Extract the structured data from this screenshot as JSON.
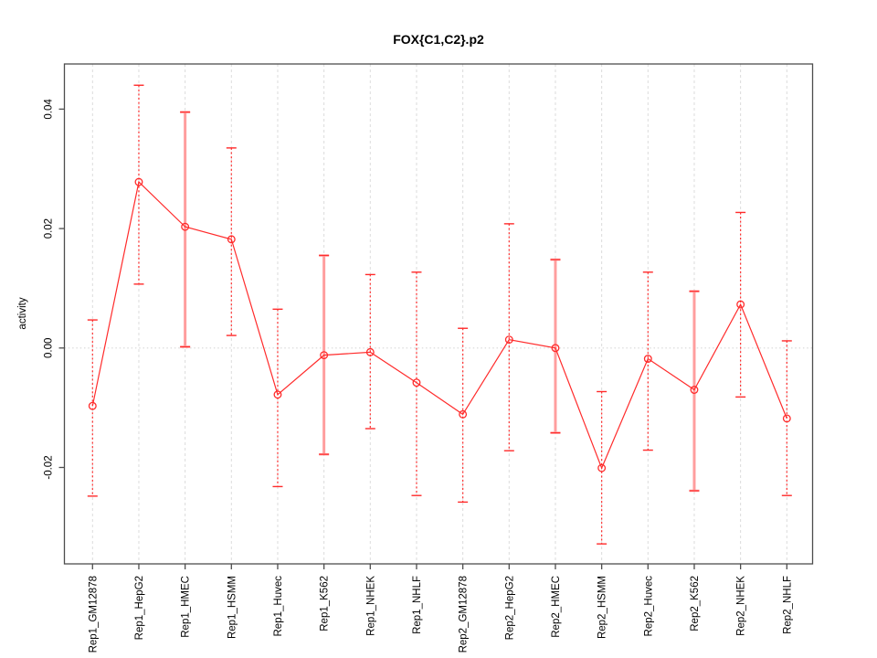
{
  "chart_data": {
    "type": "line",
    "title": "FOX{C1,C2}.p2",
    "xlabel": "",
    "ylabel": "activity",
    "categories": [
      "Rep1_GM12878",
      "Rep1_HepG2",
      "Rep1_HMEC",
      "Rep1_HSMM",
      "Rep1_Huvec",
      "Rep1_K562",
      "Rep1_NHEK",
      "Rep1_NHLF",
      "Rep2_GM12878",
      "Rep2_HepG2",
      "Rep2_HMEC",
      "Rep2_HSMM",
      "Rep2_Huvec",
      "Rep2_K562",
      "Rep2_NHEK",
      "Rep2_NHLF"
    ],
    "series": [
      {
        "name": "activity",
        "values": [
          -0.0097,
          0.0278,
          0.0203,
          0.0182,
          -0.0078,
          -0.0012,
          -0.0007,
          -0.0058,
          -0.0111,
          0.0014,
          0.0,
          -0.0201,
          -0.0018,
          -0.007,
          0.0073,
          -0.0118
        ],
        "error_upper": [
          0.0047,
          0.044,
          0.0395,
          0.0335,
          0.0065,
          0.0155,
          0.0123,
          0.0127,
          0.0033,
          0.0208,
          0.0148,
          -0.0073,
          0.0127,
          0.0095,
          0.0227,
          0.0012
        ],
        "error_lower": [
          -0.0248,
          0.0107,
          0.0002,
          0.0021,
          -0.0232,
          -0.0178,
          -0.0135,
          -0.0247,
          -0.0258,
          -0.0172,
          -0.0142,
          -0.0328,
          -0.0171,
          -0.0239,
          -0.0082,
          -0.0247
        ],
        "thick_bar": [
          false,
          false,
          true,
          false,
          false,
          true,
          false,
          false,
          false,
          false,
          true,
          false,
          false,
          true,
          false,
          false
        ]
      }
    ],
    "y_ticks": [
      {
        "value": -0.02,
        "label": "-0.02"
      },
      {
        "value": 0.0,
        "label": "0.00"
      },
      {
        "value": 0.02,
        "label": "0.02"
      },
      {
        "value": 0.04,
        "label": "0.04"
      }
    ],
    "ylim": [
      -0.0365,
      0.0475
    ],
    "grid": {
      "vertical_dashed_per_category": true,
      "horizontal_dotted_at_zero": true
    },
    "legend_position": "none",
    "marker": "open-circle",
    "colors": {
      "line": "#ff2b2b",
      "error_bar": "#ff2b2b",
      "error_bar_thick": "#ff9e9e",
      "gridline": "#dcdcdc",
      "zero_line": "#d8d8d8",
      "box": "#4d4d4d",
      "text": "#000000",
      "background": "#ffffff"
    }
  }
}
